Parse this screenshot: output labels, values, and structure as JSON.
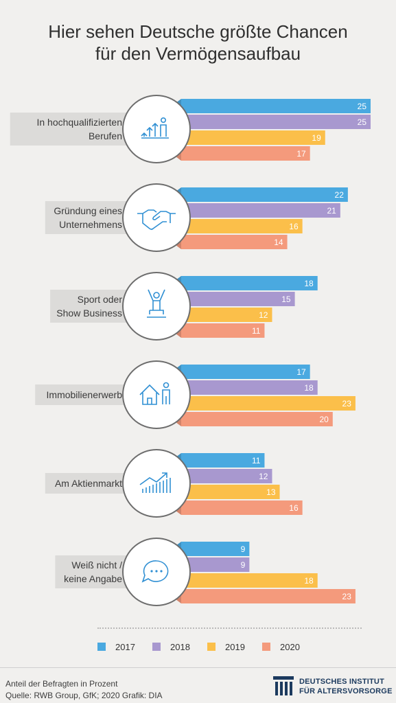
{
  "title_lines": [
    "Hier sehen Deutsche größte Chancen",
    "für den Vermögensaufbau"
  ],
  "chart_data": {
    "type": "bar",
    "orientation": "horizontal",
    "categories": [
      [
        "In hochqualifizierten",
        "Berufen"
      ],
      [
        "Gründung eines",
        "Unternehmens"
      ],
      [
        "Sport oder",
        "Show Business"
      ],
      [
        "Immobilienerwerb"
      ],
      [
        "Am Aktienmarkt"
      ],
      [
        "Weiß nicht /",
        "keine Angabe"
      ]
    ],
    "category_icons": [
      "career-growth-icon",
      "handshake-icon",
      "winner-podium-icon",
      "house-person-icon",
      "stock-chart-icon",
      "chat-bubble-icon"
    ],
    "series": [
      {
        "name": "2017",
        "color": "#4aa9e0",
        "values": [
          25,
          22,
          18,
          17,
          11,
          9
        ]
      },
      {
        "name": "2018",
        "color": "#a898cf",
        "values": [
          25,
          21,
          15,
          18,
          12,
          9
        ]
      },
      {
        "name": "2019",
        "color": "#fbbf4a",
        "values": [
          19,
          16,
          12,
          23,
          13,
          18
        ]
      },
      {
        "name": "2020",
        "color": "#f49a7c",
        "values": [
          17,
          14,
          11,
          20,
          16,
          23
        ]
      }
    ],
    "legend_position": "bottom"
  },
  "footer": {
    "note": "Anteil der Befragten in Prozent",
    "source": "Quelle: RWB Group, GfK; 2020  Grafik: DIA"
  },
  "brand": {
    "line1": "DEUTSCHES INSTITUT",
    "line2": "FÜR ALTERSVORSORGE",
    "color": "#1c3a5e"
  }
}
